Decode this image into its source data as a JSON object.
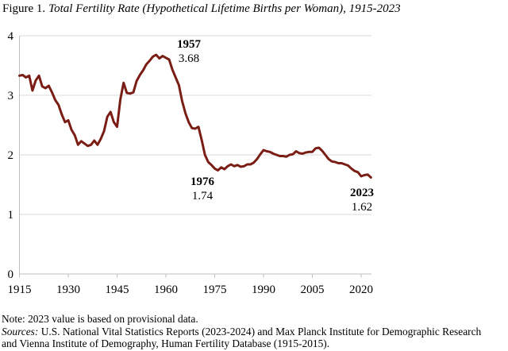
{
  "figure": {
    "title_prefix": "Figure 1.",
    "title_main": "Total Fertility Rate (Hypothetical Lifetime Births per Woman), 1915-2023"
  },
  "chart_data": {
    "type": "line",
    "title": "Total Fertility Rate (Hypothetical Lifetime Births per Woman), 1915-2023",
    "xlabel": "",
    "ylabel": "",
    "xlim": [
      1915,
      2023
    ],
    "ylim": [
      0,
      4
    ],
    "x_ticks": [
      1915,
      1930,
      1945,
      1960,
      1975,
      1990,
      2005,
      2020
    ],
    "y_ticks": [
      0,
      1,
      2,
      3,
      4
    ],
    "grid": "horizontal",
    "legend_position": "none",
    "line_color": "#7A1D15",
    "gridline_color": "#D9D9D9",
    "axis_color": "#BFBFBF",
    "x": [
      1915,
      1916,
      1917,
      1918,
      1919,
      1920,
      1921,
      1922,
      1923,
      1924,
      1925,
      1926,
      1927,
      1928,
      1929,
      1930,
      1931,
      1932,
      1933,
      1934,
      1935,
      1936,
      1937,
      1938,
      1939,
      1940,
      1941,
      1942,
      1943,
      1944,
      1945,
      1946,
      1947,
      1948,
      1949,
      1950,
      1951,
      1952,
      1953,
      1954,
      1955,
      1956,
      1957,
      1958,
      1959,
      1960,
      1961,
      1962,
      1963,
      1964,
      1965,
      1966,
      1967,
      1968,
      1969,
      1970,
      1971,
      1972,
      1973,
      1974,
      1975,
      1976,
      1977,
      1978,
      1979,
      1980,
      1981,
      1982,
      1983,
      1984,
      1985,
      1986,
      1987,
      1988,
      1989,
      1990,
      1991,
      1992,
      1993,
      1994,
      1995,
      1996,
      1997,
      1998,
      1999,
      2000,
      2001,
      2002,
      2003,
      2004,
      2005,
      2006,
      2007,
      2008,
      2009,
      2010,
      2011,
      2012,
      2013,
      2014,
      2015,
      2016,
      2017,
      2018,
      2019,
      2020,
      2021,
      2022,
      2023
    ],
    "values": [
      3.33,
      3.34,
      3.3,
      3.33,
      3.08,
      3.25,
      3.33,
      3.15,
      3.12,
      3.16,
      3.05,
      2.92,
      2.84,
      2.68,
      2.55,
      2.58,
      2.42,
      2.33,
      2.17,
      2.23,
      2.19,
      2.15,
      2.17,
      2.24,
      2.17,
      2.27,
      2.4,
      2.64,
      2.72,
      2.55,
      2.47,
      2.93,
      3.21,
      3.04,
      3.03,
      3.05,
      3.24,
      3.34,
      3.42,
      3.52,
      3.58,
      3.65,
      3.68,
      3.62,
      3.66,
      3.63,
      3.6,
      3.43,
      3.3,
      3.17,
      2.9,
      2.7,
      2.55,
      2.45,
      2.44,
      2.47,
      2.25,
      2.0,
      1.88,
      1.83,
      1.77,
      1.74,
      1.79,
      1.76,
      1.81,
      1.84,
      1.81,
      1.83,
      1.8,
      1.81,
      1.84,
      1.84,
      1.87,
      1.93,
      2.01,
      2.08,
      2.06,
      2.05,
      2.02,
      2.0,
      1.98,
      1.98,
      1.97,
      2.0,
      2.01,
      2.06,
      2.03,
      2.02,
      2.04,
      2.05,
      2.05,
      2.11,
      2.12,
      2.07,
      2.0,
      1.93,
      1.89,
      1.88,
      1.86,
      1.86,
      1.84,
      1.82,
      1.77,
      1.73,
      1.71,
      1.64,
      1.66,
      1.67,
      1.62
    ],
    "annotations": [
      {
        "year": "1957",
        "value": "3.68"
      },
      {
        "year": "1976",
        "value": "1.74"
      },
      {
        "year": "2023",
        "value": "1.62"
      }
    ]
  },
  "notes": {
    "note": "Note: 2023 value is based on provisional data.",
    "sources_label": "Sources:",
    "sources_line1": " U.S. National Vital Statistics Reports (2023-2024) and Max Planck Institute for Demographic Research",
    "sources_line2": "and Vienna Institute of Demography, Human Fertility Database (1915-2015)."
  }
}
